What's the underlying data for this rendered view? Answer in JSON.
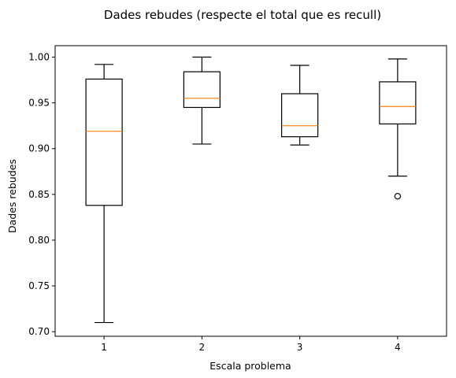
{
  "chart_data": {
    "type": "boxplot",
    "title": "Dades rebudes (respecte el total que es recull)",
    "xlabel": "Escala problema",
    "ylabel": "Dades rebudes",
    "categories": [
      "1",
      "2",
      "3",
      "4"
    ],
    "ylim": [
      0.695,
      1.0125
    ],
    "yticks": [
      "0.70",
      "0.75",
      "0.80",
      "0.85",
      "0.90",
      "0.95",
      "1.00"
    ],
    "grid": false,
    "boxes": [
      {
        "category": "1",
        "whisker_low": 0.71,
        "q1": 0.838,
        "median": 0.919,
        "q3": 0.976,
        "whisker_high": 0.992,
        "outliers": []
      },
      {
        "category": "2",
        "whisker_low": 0.905,
        "q1": 0.945,
        "median": 0.955,
        "q3": 0.984,
        "whisker_high": 1.0,
        "outliers": []
      },
      {
        "category": "3",
        "whisker_low": 0.904,
        "q1": 0.913,
        "median": 0.925,
        "q3": 0.96,
        "whisker_high": 0.991,
        "outliers": []
      },
      {
        "category": "4",
        "whisker_low": 0.87,
        "q1": 0.927,
        "median": 0.946,
        "q3": 0.973,
        "whisker_high": 0.998,
        "outliers": [
          0.848
        ]
      }
    ],
    "colors": {
      "box": "#000000",
      "median": "#ff7f0e",
      "axes": "#000000"
    }
  }
}
